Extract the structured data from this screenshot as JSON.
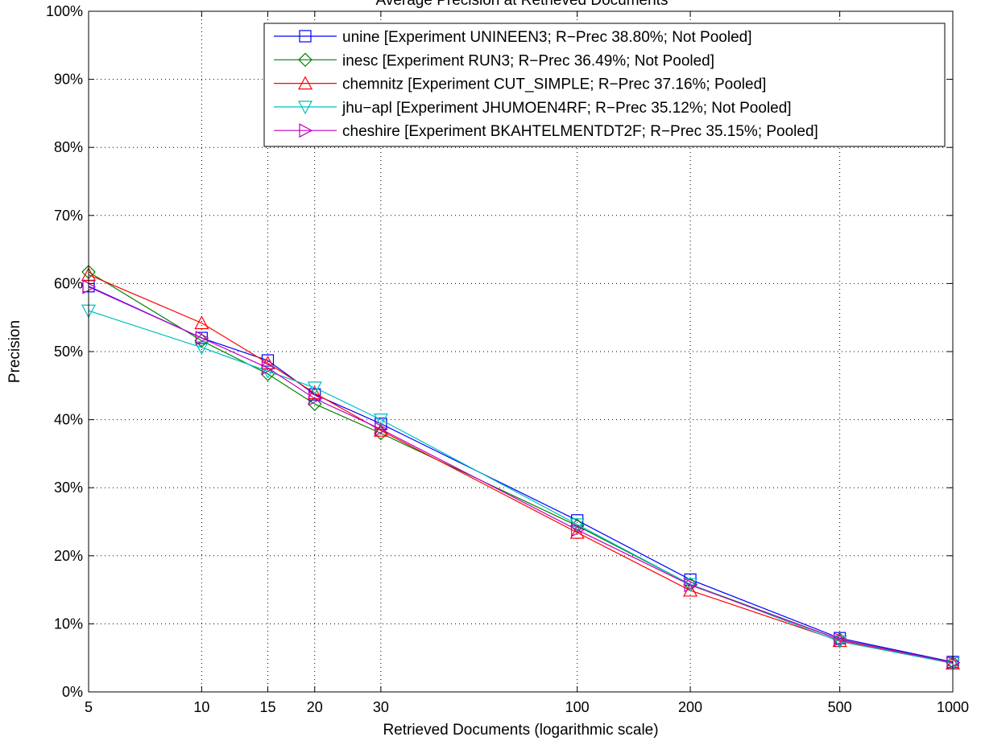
{
  "chart_data": {
    "type": "line",
    "title": "Average Precision at Retrieved Documents",
    "xlabel": "Retrieved Documents (logarithmic scale)",
    "ylabel": "Precision",
    "x_scale": "log",
    "x": [
      5,
      10,
      15,
      20,
      30,
      100,
      200,
      500,
      1000
    ],
    "x_tick_labels": [
      "5",
      "10",
      "15",
      "20",
      "30",
      "100",
      "200",
      "500",
      "1000"
    ],
    "xlim": [
      5,
      1000
    ],
    "ylim": [
      0,
      100
    ],
    "y_ticks": [
      0,
      10,
      20,
      30,
      40,
      50,
      60,
      70,
      80,
      90,
      100
    ],
    "y_tick_labels": [
      "0%",
      "10%",
      "20%",
      "30%",
      "40%",
      "50%",
      "60%",
      "70%",
      "80%",
      "90%",
      "100%"
    ],
    "grid": true,
    "legend_position": "top-right",
    "series": [
      {
        "name": "unine [Experiment UNINEEN3; R−Prec 38.80%; Not Pooled]",
        "color": "#0000ff",
        "marker": "square",
        "values": [
          59.6,
          52.0,
          48.7,
          43.7,
          39.4,
          25.2,
          16.5,
          7.9,
          4.4
        ]
      },
      {
        "name": "inesc [Experiment RUN3; R−Prec 36.49%; Not Pooled]",
        "color": "#008000",
        "marker": "diamond",
        "values": [
          61.7,
          51.6,
          46.7,
          42.3,
          38.0,
          24.4,
          15.8,
          7.7,
          4.3
        ]
      },
      {
        "name": "chemnitz [Experiment CUT_SIMPLE; R−Prec 37.16%; Pooled]",
        "color": "#ff0000",
        "marker": "triangle-up",
        "values": [
          61.3,
          54.2,
          48.3,
          43.9,
          38.4,
          23.4,
          14.9,
          7.5,
          4.2
        ]
      },
      {
        "name": "jhu−apl [Experiment JHUMOEN4RF; R−Prec 35.12%; Not Pooled]",
        "color": "#00bfbf",
        "marker": "triangle-down",
        "values": [
          56.0,
          50.6,
          47.1,
          44.7,
          40.0,
          24.6,
          15.8,
          7.4,
          4.2
        ]
      },
      {
        "name": "cheshire [Experiment BKAHTELMENTDT2F; R−Prec 35.15%; Pooled]",
        "color": "#bf00bf",
        "marker": "triangle-right",
        "values": [
          59.5,
          52.0,
          47.6,
          43.1,
          38.6,
          23.8,
          15.7,
          7.7,
          4.3
        ]
      }
    ]
  }
}
